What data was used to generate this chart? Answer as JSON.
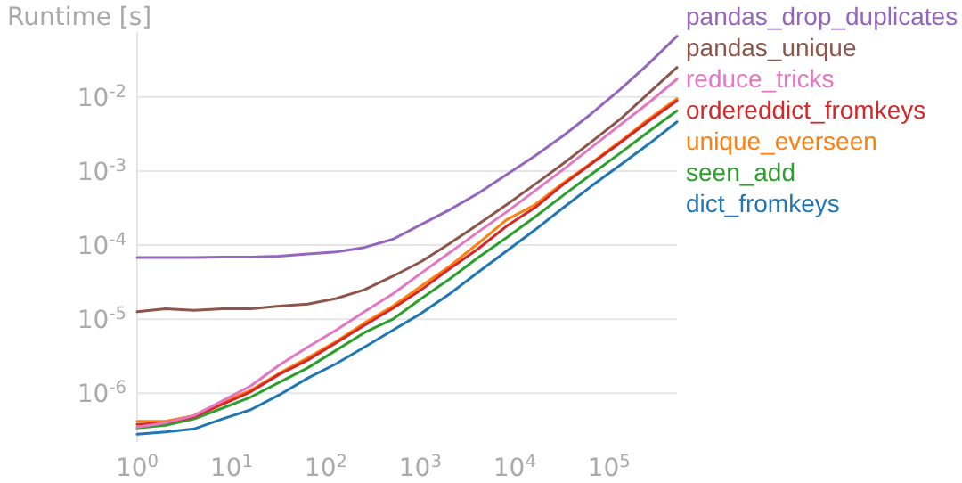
{
  "chart_data": {
    "type": "line",
    "ylabel": "Runtime [s]",
    "x": [
      1,
      2,
      4,
      8,
      16,
      32,
      64,
      128,
      256,
      512,
      1024,
      2048,
      4096,
      8192,
      16384,
      32768,
      65536,
      131072,
      262144,
      524288
    ],
    "log": "xy",
    "grid": "y",
    "legend": "right",
    "xlim": [
      1,
      524288
    ],
    "ylim": [
      2.2e-07,
      0.075
    ],
    "xticks": [
      {
        "value": 1,
        "label": "10$^{0}$"
      },
      {
        "value": 10,
        "label": "10$^{1}$"
      },
      {
        "value": 100,
        "label": "10$^{2}$"
      },
      {
        "value": 1000,
        "label": "10$^{3}$"
      },
      {
        "value": 10000,
        "label": "10$^{4}$"
      },
      {
        "value": 100000,
        "label": "10$^{5}$"
      }
    ],
    "yticks": [
      {
        "value": 1e-06,
        "label": "10$^{-6}$"
      },
      {
        "value": 1e-05,
        "label": "10$^{-5}$"
      },
      {
        "value": 0.0001,
        "label": "10$^{-4}$"
      },
      {
        "value": 0.001,
        "label": "10$^{-3}$"
      },
      {
        "value": 0.01,
        "label": "10$^{-2}$"
      }
    ],
    "series": [
      {
        "name": "pandas_drop_duplicates",
        "color": "#9467bd",
        "values": [
          6.8e-05,
          6.8e-05,
          6.8e-05,
          6.9e-05,
          6.9e-05,
          7.1e-05,
          7.6e-05,
          8.1e-05,
          9.3e-05,
          0.00012,
          0.00019,
          0.0003,
          0.0005,
          0.00089,
          0.0016,
          0.003,
          0.006,
          0.0126,
          0.028,
          0.066
        ]
      },
      {
        "name": "pandas_unique",
        "color": "#8c564b",
        "values": [
          1.26e-05,
          1.38e-05,
          1.32e-05,
          1.38e-05,
          1.38e-05,
          1.5e-05,
          1.6e-05,
          1.9e-05,
          2.5e-05,
          3.8e-05,
          6e-05,
          0.000105,
          0.00019,
          0.00035,
          0.00066,
          0.00126,
          0.0025,
          0.005,
          0.0112,
          0.025
        ]
      },
      {
        "name": "reduce_tricks",
        "color": "#e377c2",
        "values": [
          3.5e-07,
          4e-07,
          5e-07,
          7.9e-07,
          1.26e-06,
          2.4e-06,
          4.2e-06,
          7.1e-06,
          1.26e-05,
          2.2e-05,
          4.2e-05,
          7.9e-05,
          0.00015,
          0.00028,
          0.00054,
          0.00105,
          0.0021,
          0.0042,
          0.0083,
          0.0174
        ]
      },
      {
        "name": "ordereddict_fromkeys",
        "color": "#d62728",
        "values": [
          3.8e-07,
          4e-07,
          4.8e-07,
          7.1e-07,
          1.05e-06,
          1.8e-06,
          2.8e-06,
          4.8e-06,
          8.3e-06,
          1.4e-05,
          2.5e-05,
          4.8e-05,
          8.9e-05,
          0.00018,
          0.00032,
          0.00066,
          0.00126,
          0.0024,
          0.0047,
          0.0089
        ]
      },
      {
        "name": "unique_everseen",
        "color": "#ff7f0e",
        "values": [
          4.2e-07,
          4.2e-07,
          5e-07,
          7.6e-07,
          1.1e-06,
          1.86e-06,
          3e-06,
          5e-06,
          8.9e-06,
          1.5e-05,
          2.8e-05,
          5.2e-05,
          0.000105,
          0.00022,
          0.00035,
          0.00069,
          0.0013,
          0.0025,
          0.005,
          0.0095
        ]
      },
      {
        "name": "seen_add",
        "color": "#2ca02c",
        "values": [
          3.4e-07,
          3.7e-07,
          4.5e-07,
          6.3e-07,
          8.9e-07,
          1.4e-06,
          2.2e-06,
          3.8e-06,
          6.6e-06,
          1e-05,
          1.9e-05,
          3.5e-05,
          6.8e-05,
          0.000126,
          0.00024,
          0.00047,
          0.00091,
          0.00174,
          0.0034,
          0.0065
        ]
      },
      {
        "name": "dict_fromkeys",
        "color": "#1f77b4",
        "values": [
          2.8e-07,
          3e-07,
          3.3e-07,
          4.5e-07,
          6e-07,
          9.5e-07,
          1.6e-06,
          2.5e-06,
          4.2e-06,
          7.1e-06,
          1.2e-05,
          2.2e-05,
          4.3e-05,
          8.3e-05,
          0.00016,
          0.00032,
          0.00063,
          0.0012,
          0.0023,
          0.0046
        ]
      }
    ]
  }
}
